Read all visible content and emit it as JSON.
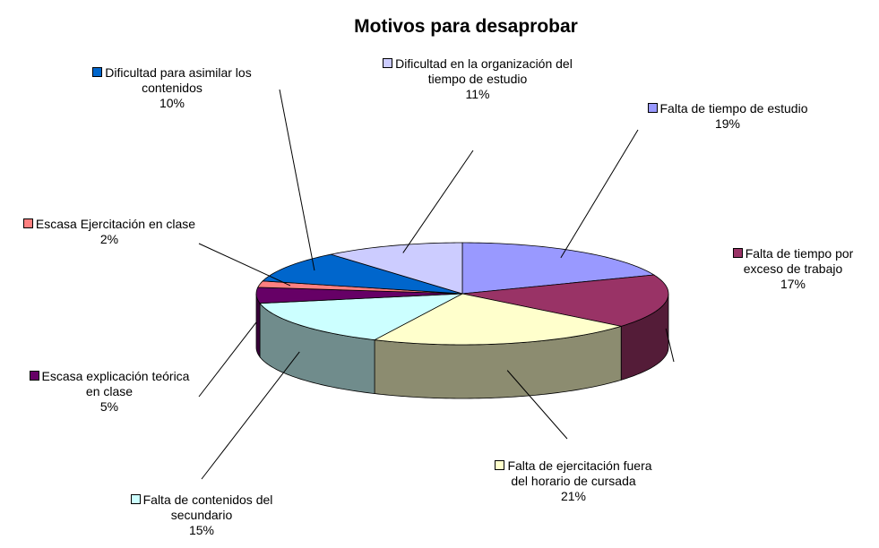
{
  "chart_data": {
    "type": "pie",
    "title": "Motivos para desaprobar",
    "categories": [
      "Falta de tiempo de estudio",
      "Falta de tiempo por exceso de trabajo",
      "Falta de ejercitación fuera del horario de cursada",
      "Falta de contenidos del secundario",
      "Escasa explicación teórica en clase",
      "Escasa Ejercitación en clase",
      "Dificultad para asimilar los contenidos",
      "Dificultad en la organización del tiempo de estudio"
    ],
    "values": [
      19,
      17,
      21,
      15,
      5,
      2,
      10,
      11
    ],
    "value_labels": [
      "19%",
      "17%",
      "21%",
      "15%",
      "5%",
      "2%",
      "10%",
      "11%"
    ],
    "colors": [
      "#9999ff",
      "#993366",
      "#ffffcc",
      "#ccffff",
      "#660066",
      "#ff8080",
      "#0066cc",
      "#ccccff"
    ]
  }
}
